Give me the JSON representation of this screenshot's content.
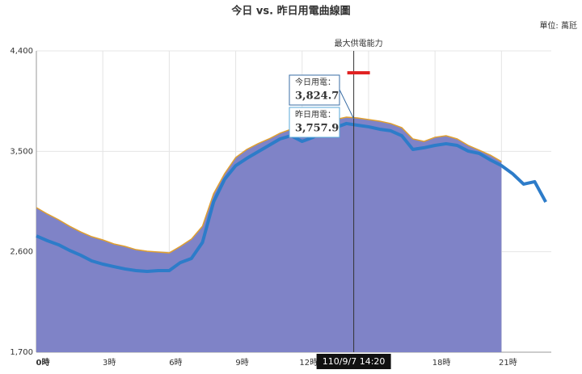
{
  "chart_data": {
    "type": "line",
    "title": "今日 vs. 昨日用電曲線圖",
    "unit": "單位: 萬瓩",
    "x": [
      0,
      0.5,
      1,
      1.5,
      2,
      2.5,
      3,
      3.5,
      4,
      4.5,
      5,
      5.5,
      6,
      6.5,
      7,
      7.5,
      8,
      8.5,
      9,
      9.5,
      10,
      10.5,
      11,
      11.5,
      12,
      12.5,
      13,
      13.5,
      14,
      14.5,
      15,
      15.5,
      16,
      16.5,
      17,
      17.5,
      18,
      18.5,
      19,
      19.5,
      20,
      20.5,
      21,
      21.5,
      22,
      22.5,
      23
    ],
    "series": [
      {
        "name": "今日用電",
        "kind": "area",
        "color": "#7f83c7",
        "line_color": "#e0a030",
        "values": [
          2996,
          2938,
          2887,
          2829,
          2778,
          2735,
          2706,
          2670,
          2648,
          2619,
          2605,
          2598,
          2590,
          2648,
          2713,
          2829,
          3119,
          3300,
          3444,
          3517,
          3568,
          3611,
          3662,
          3698,
          3734,
          3734,
          3756,
          3785,
          3806,
          3799,
          3785,
          3770,
          3749,
          3712,
          3611,
          3589,
          3626,
          3640,
          3611,
          3553,
          3510,
          3466,
          3408,
          null,
          null,
          null,
          null
        ]
      },
      {
        "name": "昨日用電",
        "kind": "line",
        "color": "#2d7cc9",
        "values": [
          2742,
          2699,
          2663,
          2612,
          2569,
          2518,
          2489,
          2467,
          2446,
          2431,
          2424,
          2431,
          2431,
          2503,
          2540,
          2684,
          3046,
          3249,
          3372,
          3437,
          3495,
          3553,
          3611,
          3640,
          3589,
          3626,
          3684,
          3713,
          3749,
          3734,
          3720,
          3698,
          3684,
          3640,
          3517,
          3532,
          3553,
          3568,
          3553,
          3502,
          3481,
          3423,
          3372,
          3300,
          3206,
          3228,
          3046
        ]
      }
    ],
    "xlim": [
      0,
      23.25
    ],
    "xticks": [
      {
        "value": 0,
        "label": "0時"
      },
      {
        "value": 3,
        "label": "3時"
      },
      {
        "value": 6,
        "label": "6時"
      },
      {
        "value": 9,
        "label": "9時"
      },
      {
        "value": 12,
        "label": "12時"
      },
      {
        "value": 15,
        "label": "15時"
      },
      {
        "value": 18,
        "label": "18時"
      },
      {
        "value": 21,
        "label": "21時"
      }
    ],
    "ylim": [
      1700,
      4400
    ],
    "yticks": [
      {
        "value": 1700,
        "label": "1,700"
      },
      {
        "value": 2600,
        "label": "2,600"
      },
      {
        "value": 3500,
        "label": "3,500"
      },
      {
        "value": 4400,
        "label": "4,400"
      }
    ],
    "grid": true,
    "max_supply": {
      "label": "最大供電能力",
      "value": 4204
    },
    "cursor": {
      "x": 14.33,
      "label": "110/9/7 14:20"
    },
    "tooltip": [
      {
        "label": "今日用電：",
        "value": "3,824.7"
      },
      {
        "label": "昨日用電：",
        "value": "3,757.9"
      }
    ]
  }
}
